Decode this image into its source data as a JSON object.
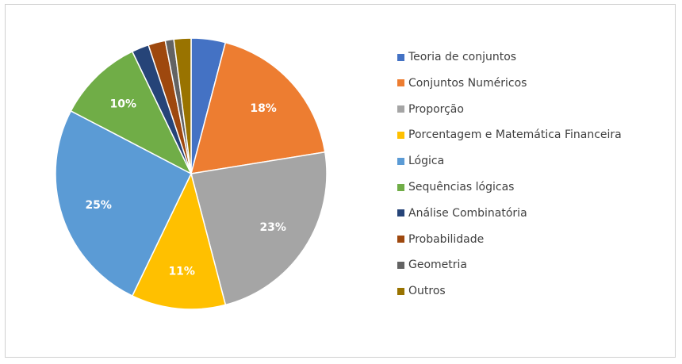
{
  "chart_data": {
    "type": "pie",
    "categories": [
      "Teoria de conjuntos",
      "Conjuntos Numéricos",
      "Proporção",
      "Porcentagem e Matemática Financeira",
      "Lógica",
      "Sequências lógicas",
      "Análise Combinatória",
      "Probabilidade",
      "Geometria",
      "Outros"
    ],
    "values": [
      4,
      18,
      23,
      11,
      25,
      10,
      2,
      2,
      1,
      2
    ],
    "data_labels": [
      "",
      "18%",
      "23%",
      "11%",
      "25%",
      "10%",
      "",
      "",
      "",
      ""
    ],
    "colors": [
      "#4472c4",
      "#ed7d31",
      "#a5a5a5",
      "#ffc000",
      "#5b9bd5",
      "#70ad47",
      "#264478",
      "#9e480e",
      "#636363",
      "#997300"
    ],
    "legend": "right"
  }
}
